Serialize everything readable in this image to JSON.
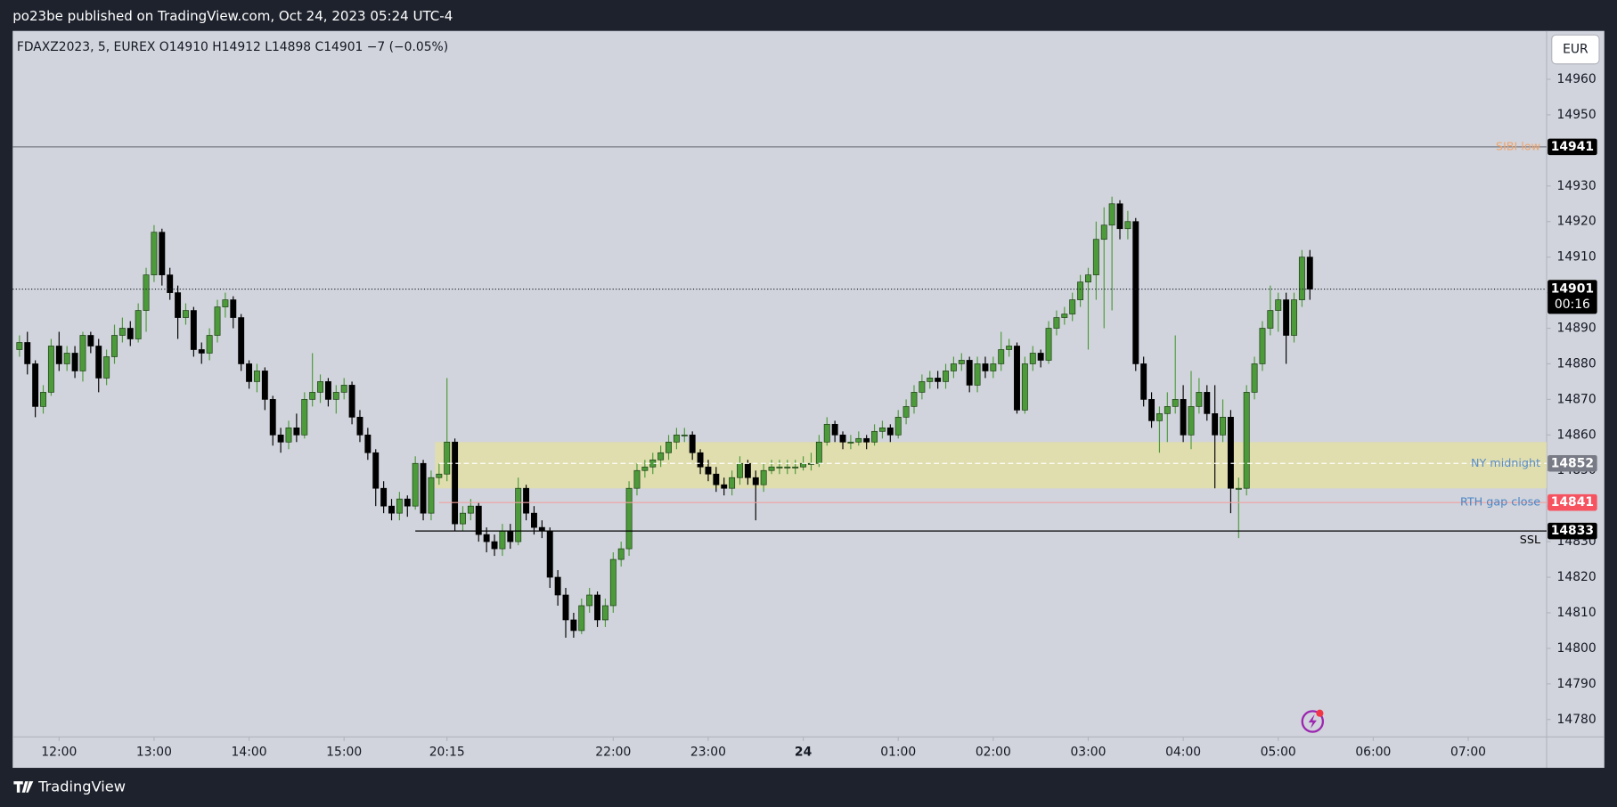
{
  "header": "po23be published on TradingView.com, Oct 24, 2023 05:24 UTC-4",
  "footer": "TradingView",
  "chart_data": {
    "type": "candlestick",
    "legend": "FDAXZ2023, 5, EUREX  O14910  H14912  L14898  C14901  −7 (−0.05%)",
    "currency": "EUR",
    "up_color": "#4c9a3a",
    "down_color": "#000000",
    "candles": [
      [
        14884,
        14888,
        14882,
        14886
      ],
      [
        14886,
        14889,
        14877,
        14880
      ],
      [
        14880,
        14881,
        14865,
        14868
      ],
      [
        14868,
        14874,
        14866,
        14872
      ],
      [
        14872,
        14887,
        14871,
        14885
      ],
      [
        14885,
        14889,
        14878,
        14880
      ],
      [
        14880,
        14885,
        14878,
        14883
      ],
      [
        14883,
        14885,
        14876,
        14878
      ],
      [
        14878,
        14889,
        14875,
        14888
      ],
      [
        14888,
        14889,
        14883,
        14885
      ],
      [
        14885,
        14887,
        14872,
        14876
      ],
      [
        14876,
        14884,
        14874,
        14882
      ],
      [
        14882,
        14891,
        14880,
        14888
      ],
      [
        14888,
        14893,
        14886,
        14890
      ],
      [
        14890,
        14892,
        14885,
        14887
      ],
      [
        14887,
        14897,
        14886,
        14895
      ],
      [
        14895,
        14907,
        14889,
        14905
      ],
      [
        14905,
        14919,
        14903,
        14917
      ],
      [
        14917,
        14918,
        14902,
        14905
      ],
      [
        14905,
        14907,
        14898,
        14900
      ],
      [
        14900,
        14902,
        14887,
        14893
      ],
      [
        14893,
        14897,
        14891,
        14895
      ],
      [
        14895,
        14896,
        14882,
        14884
      ],
      [
        14884,
        14886,
        14880,
        14883
      ],
      [
        14883,
        14890,
        14881,
        14888
      ],
      [
        14888,
        14898,
        14886,
        14896
      ],
      [
        14896,
        14900,
        14893,
        14898
      ],
      [
        14898,
        14899,
        14890,
        14893
      ],
      [
        14893,
        14894,
        14878,
        14880
      ],
      [
        14880,
        14881,
        14873,
        14875
      ],
      [
        14875,
        14880,
        14872,
        14878
      ],
      [
        14878,
        14879,
        14867,
        14870
      ],
      [
        14870,
        14871,
        14857,
        14860
      ],
      [
        14860,
        14862,
        14855,
        14858
      ],
      [
        14858,
        14864,
        14856,
        14862
      ],
      [
        14862,
        14866,
        14858,
        14860
      ],
      [
        14860,
        14872,
        14859,
        14870
      ],
      [
        14870,
        14883,
        14868,
        14872
      ],
      [
        14872,
        14877,
        14869,
        14875
      ],
      [
        14875,
        14876,
        14868,
        14870
      ],
      [
        14870,
        14874,
        14866,
        14872
      ],
      [
        14872,
        14876,
        14870,
        14874
      ],
      [
        14874,
        14875,
        14863,
        14865
      ],
      [
        14865,
        14867,
        14858,
        14860
      ],
      [
        14860,
        14862,
        14853,
        14855
      ],
      [
        14855,
        14856,
        14840,
        14845
      ],
      [
        14845,
        14847,
        14838,
        14840
      ],
      [
        14840,
        14842,
        14836,
        14838
      ],
      [
        14838,
        14844,
        14836,
        14842
      ],
      [
        14842,
        14843,
        14837,
        14840
      ],
      [
        14840,
        14854,
        14839,
        14852
      ],
      [
        14852,
        14853,
        14836,
        14838
      ],
      [
        14838,
        14850,
        14836,
        14848
      ],
      [
        14848,
        14852,
        14846,
        14849
      ],
      [
        14849,
        14876,
        14847,
        14858
      ],
      [
        14858,
        14859,
        14833,
        14835
      ],
      [
        14835,
        14840,
        14833,
        14838
      ],
      [
        14838,
        14842,
        14836,
        14840
      ],
      [
        14840,
        14841,
        14830,
        14832
      ],
      [
        14832,
        14834,
        14827,
        14830
      ],
      [
        14830,
        14832,
        14826,
        14828
      ],
      [
        14828,
        14835,
        14826,
        14833
      ],
      [
        14833,
        14835,
        14828,
        14830
      ],
      [
        14830,
        14848,
        14829,
        14845
      ],
      [
        14845,
        14846,
        14836,
        14838
      ],
      [
        14838,
        14840,
        14832,
        14834
      ],
      [
        14834,
        14836,
        14831,
        14833
      ],
      [
        14833,
        14834,
        14817,
        14820
      ],
      [
        14820,
        14822,
        14812,
        14815
      ],
      [
        14815,
        14817,
        14803,
        14808
      ],
      [
        14808,
        14810,
        14803,
        14805
      ],
      [
        14805,
        14814,
        14804,
        14812
      ],
      [
        14812,
        14817,
        14810,
        14815
      ],
      [
        14815,
        14816,
        14806,
        14808
      ],
      [
        14808,
        14814,
        14806,
        14812
      ],
      [
        14812,
        14827,
        14810,
        14825
      ],
      [
        14825,
        14830,
        14823,
        14828
      ],
      [
        14828,
        14847,
        14826,
        14845
      ],
      [
        14845,
        14852,
        14843,
        14850
      ],
      [
        14850,
        14853,
        14848,
        14851
      ],
      [
        14851,
        14855,
        14849,
        14853
      ],
      [
        14853,
        14857,
        14851,
        14855
      ],
      [
        14855,
        14860,
        14853,
        14858
      ],
      [
        14858,
        14862,
        14856,
        14860
      ],
      [
        14860,
        14862,
        14858,
        14860
      ],
      [
        14860,
        14861,
        14853,
        14855
      ],
      [
        14855,
        14856,
        14849,
        14851
      ],
      [
        14851,
        14853,
        14847,
        14849
      ],
      [
        14849,
        14851,
        14844,
        14846
      ],
      [
        14846,
        14848,
        14843,
        14845
      ],
      [
        14845,
        14850,
        14843,
        14848
      ],
      [
        14848,
        14854,
        14846,
        14852
      ],
      [
        14852,
        14853,
        14846,
        14848
      ],
      [
        14848,
        14850,
        14836,
        14846
      ],
      [
        14846,
        14852,
        14844,
        14850
      ],
      [
        14850,
        14853,
        14849,
        14851
      ],
      [
        14851,
        14853,
        14849,
        14851
      ],
      [
        14851,
        14853,
        14849,
        14851
      ],
      [
        14851,
        14853,
        14849,
        14851
      ],
      [
        14851,
        14854,
        14850,
        14852
      ],
      [
        14852,
        14855,
        14850,
        14852
      ],
      [
        14852,
        14860,
        14851,
        14858
      ],
      [
        14858,
        14865,
        14857,
        14863
      ],
      [
        14863,
        14864,
        14858,
        14860
      ],
      [
        14860,
        14861,
        14856,
        14858
      ],
      [
        14858,
        14860,
        14856,
        14858
      ],
      [
        14858,
        14861,
        14857,
        14859
      ],
      [
        14859,
        14860,
        14856,
        14858
      ],
      [
        14858,
        14863,
        14857,
        14861
      ],
      [
        14861,
        14864,
        14859,
        14862
      ],
      [
        14862,
        14863,
        14858,
        14860
      ],
      [
        14860,
        14867,
        14859,
        14865
      ],
      [
        14865,
        14870,
        14863,
        14868
      ],
      [
        14868,
        14874,
        14866,
        14872
      ],
      [
        14872,
        14877,
        14870,
        14875
      ],
      [
        14875,
        14878,
        14873,
        14876
      ],
      [
        14876,
        14878,
        14873,
        14875
      ],
      [
        14875,
        14880,
        14873,
        14878
      ],
      [
        14878,
        14882,
        14876,
        14880
      ],
      [
        14880,
        14883,
        14878,
        14881
      ],
      [
        14881,
        14882,
        14872,
        14874
      ],
      [
        14874,
        14882,
        14872,
        14880
      ],
      [
        14880,
        14882,
        14876,
        14878
      ],
      [
        14878,
        14882,
        14876,
        14880
      ],
      [
        14880,
        14889,
        14878,
        14884
      ],
      [
        14884,
        14887,
        14882,
        14885
      ],
      [
        14885,
        14886,
        14866,
        14867
      ],
      [
        14867,
        14882,
        14866,
        14880
      ],
      [
        14880,
        14885,
        14878,
        14883
      ],
      [
        14883,
        14884,
        14879,
        14881
      ],
      [
        14881,
        14892,
        14880,
        14890
      ],
      [
        14890,
        14895,
        14888,
        14893
      ],
      [
        14893,
        14896,
        14891,
        14894
      ],
      [
        14894,
        14900,
        14892,
        14898
      ],
      [
        14898,
        14905,
        14896,
        14903
      ],
      [
        14903,
        14907,
        14884,
        14905
      ],
      [
        14905,
        14920,
        14898,
        14915
      ],
      [
        14915,
        14924,
        14890,
        14919
      ],
      [
        14919,
        14927,
        14895,
        14925
      ],
      [
        14925,
        14926,
        14915,
        14918
      ],
      [
        14918,
        14923,
        14915,
        14920
      ],
      [
        14920,
        14921,
        14878,
        14880
      ],
      [
        14880,
        14882,
        14868,
        14870
      ],
      [
        14870,
        14872,
        14862,
        14864
      ],
      [
        14864,
        14868,
        14855,
        14866
      ],
      [
        14866,
        14872,
        14858,
        14868
      ],
      [
        14868,
        14888,
        14866,
        14870
      ],
      [
        14870,
        14874,
        14858,
        14860
      ],
      [
        14860,
        14878,
        14856,
        14868
      ],
      [
        14868,
        14876,
        14866,
        14872
      ],
      [
        14872,
        14874,
        14864,
        14866
      ],
      [
        14866,
        14874,
        14845,
        14860
      ],
      [
        14860,
        14870,
        14858,
        14865
      ],
      [
        14865,
        14867,
        14838,
        14845
      ],
      [
        14845,
        14848,
        14831,
        14845
      ],
      [
        14845,
        14874,
        14843,
        14872
      ],
      [
        14872,
        14882,
        14870,
        14880
      ],
      [
        14880,
        14892,
        14878,
        14890
      ],
      [
        14890,
        14902,
        14888,
        14895
      ],
      [
        14895,
        14900,
        14889,
        14898
      ],
      [
        14898,
        14900,
        14880,
        14888
      ],
      [
        14888,
        14900,
        14886,
        14898
      ],
      [
        14898,
        14912,
        14896,
        14910
      ],
      [
        14910,
        14912,
        14898,
        14901
      ]
    ],
    "xlim": [
      -0.86,
      192.9
    ],
    "xticks": [
      {
        "value": 5,
        "label": "12:00"
      },
      {
        "value": 17,
        "label": "13:00"
      },
      {
        "value": 29,
        "label": "14:00"
      },
      {
        "value": 41,
        "label": "15:00"
      },
      {
        "value": 54,
        "label": "20:15"
      },
      {
        "value": 75,
        "label": "22:00"
      },
      {
        "value": 87,
        "label": "23:00"
      },
      {
        "value": 99,
        "label": "24"
      },
      {
        "value": 111,
        "label": "01:00"
      },
      {
        "value": 123,
        "label": "02:00"
      },
      {
        "value": 135,
        "label": "03:00"
      },
      {
        "value": 147,
        "label": "04:00"
      },
      {
        "value": 159,
        "label": "05:00"
      },
      {
        "value": 171,
        "label": "06:00"
      },
      {
        "value": 183,
        "label": "07:00"
      }
    ],
    "ylim": [
      14775.1,
      14973.6
    ],
    "yticks": [
      14780,
      14790,
      14800,
      14810,
      14820,
      14830,
      14840,
      14850,
      14860,
      14870,
      14880,
      14890,
      14900,
      14910,
      14920,
      14930,
      14940,
      14950,
      14960
    ],
    "zone": {
      "from": 14845,
      "to": 14858,
      "start": 53,
      "color": "#e3dfa6"
    },
    "levels": [
      {
        "name": "SIBI low",
        "value": 14941,
        "line_color": "#787b86",
        "label_color": "#f0a46c",
        "box_color": "#000000"
      },
      {
        "name": "NY midnight",
        "value": 14852,
        "start": 53,
        "line_color": "#ffffff",
        "label_color": "#5b8ccc",
        "box_color": "#787b86",
        "dashed": true
      },
      {
        "name": "RTH gap close",
        "value": 14841,
        "start": 53,
        "line_color": "#f0a0a0",
        "label_color": "#4a86c5",
        "box_color": "#f7525f"
      },
      {
        "name": "SSL",
        "value": 14833,
        "start": 50,
        "line_color": "#000000",
        "label_color": "#000000",
        "box_color": "#000000"
      }
    ],
    "last": {
      "value": 14901,
      "countdown": "00:16"
    }
  }
}
